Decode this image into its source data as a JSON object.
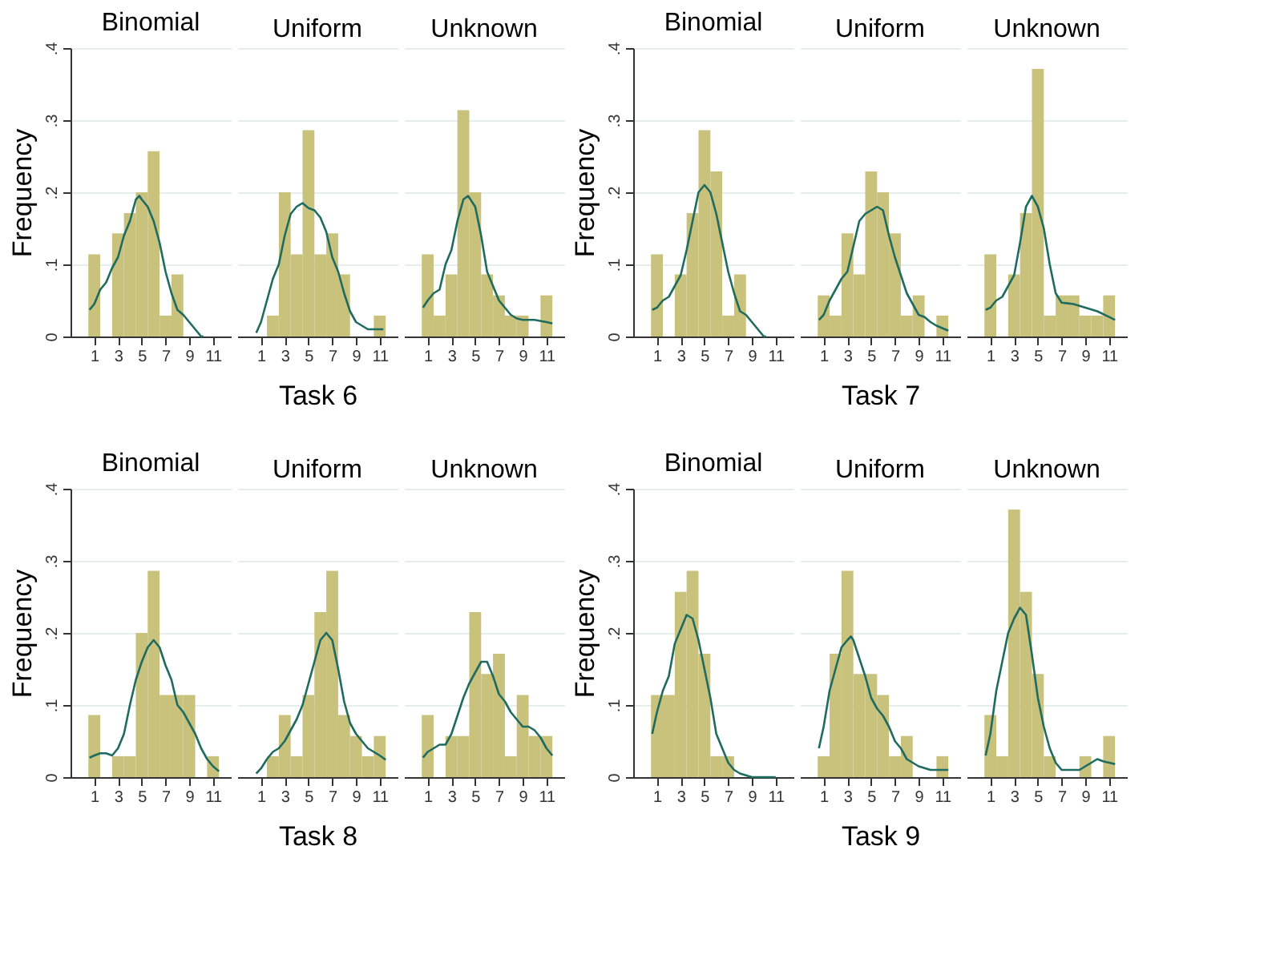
{
  "chart_data": [
    {
      "type": "histogram",
      "title": "Binomial",
      "ylabel": "Frequency",
      "color": "#c9c27d",
      "bins": [
        0.5,
        1.5,
        2.5,
        3.5,
        4.5,
        5.5,
        6.5,
        7.5,
        8.5,
        9.5,
        10.5,
        11.5
      ],
      "values": [
        0.114,
        0,
        0.143,
        0.171,
        0.2,
        0.257,
        0.029,
        0.086,
        0,
        0,
        0
      ],
      "series": [
        {
          "type": "line",
          "color": "#1f6b5f",
          "x": [
            0.6,
            1,
            1.5,
            2,
            2.5,
            3,
            3.5,
            4,
            4.5,
            4.8,
            5,
            5.5,
            6,
            6.5,
            7,
            7.5,
            8,
            8.5,
            9,
            9.5,
            10,
            10.2
          ],
          "values": [
            0.037,
            0.045,
            0.065,
            0.075,
            0.095,
            0.11,
            0.14,
            0.16,
            0.19,
            0.195,
            0.19,
            0.18,
            0.16,
            0.13,
            0.09,
            0.06,
            0.037,
            0.03,
            0.02,
            0.01,
            0,
            0
          ]
        }
      ],
      "xlim": [
        -1,
        12.5
      ],
      "xticks": [
        1,
        3,
        5,
        7,
        9,
        11
      ],
      "ylim": [
        0,
        0.4
      ],
      "yticks": [
        0,
        {
          "value": 0.1,
          "label": ".1"
        },
        {
          "value": 0.2,
          "label": ".2"
        },
        {
          "value": 0.3,
          "label": ".3"
        },
        {
          "value": 0.4,
          "label": ".4"
        }
      ],
      "grid": "y"
    },
    {
      "type": "histogram",
      "title": "Uniform",
      "xlabel": "Task 6",
      "color": "#c9c27d",
      "bins": [
        0.5,
        1.5,
        2.5,
        3.5,
        4.5,
        5.5,
        6.5,
        7.5,
        8.5,
        9.5,
        10.5,
        11.5
      ],
      "values": [
        0,
        0.029,
        0.2,
        0.114,
        0.286,
        0.114,
        0.143,
        0.086,
        0,
        0,
        0.029
      ],
      "series": [
        {
          "type": "line",
          "color": "#1f6b5f",
          "x": [
            0.6,
            1,
            1.5,
            2,
            2.5,
            3,
            3.5,
            4,
            4.5,
            5,
            5.5,
            6,
            6.5,
            7,
            7.5,
            8,
            8.5,
            9,
            9.5,
            10,
            10.5,
            11.3
          ],
          "values": [
            0.005,
            0.02,
            0.05,
            0.08,
            0.1,
            0.14,
            0.17,
            0.18,
            0.185,
            0.178,
            0.175,
            0.165,
            0.145,
            0.11,
            0.09,
            0.06,
            0.035,
            0.02,
            0.015,
            0.01,
            0.01,
            0.01
          ]
        }
      ],
      "xlim": [
        -1,
        12.5
      ],
      "xticks": [
        1,
        3,
        5,
        7,
        9,
        11
      ],
      "ylim": [
        0,
        0.4
      ],
      "yticks": [
        {
          "value": 0,
          "label": null
        },
        {
          "value": 0.1,
          "label": null
        },
        {
          "value": 0.2,
          "label": null
        },
        {
          "value": 0.3,
          "label": null
        },
        {
          "value": 0.4,
          "label": null
        }
      ],
      "grid": "y",
      "tick_labels": "x"
    },
    {
      "type": "histogram",
      "title": "Unknown",
      "color": "#c9c27d",
      "bins": [
        0.5,
        1.5,
        2.5,
        3.5,
        4.5,
        5.5,
        6.5,
        7.5,
        8.5,
        9.5,
        10.5,
        11.5
      ],
      "values": [
        0.114,
        0.029,
        0.086,
        0.314,
        0.2,
        0.086,
        0.057,
        0.029,
        0.029,
        0,
        0.057
      ],
      "series": [
        {
          "type": "line",
          "color": "#1f6b5f",
          "x": [
            0.6,
            1,
            1.5,
            2,
            2.5,
            3,
            3.5,
            4,
            4.4,
            5,
            5.5,
            6,
            6.5,
            7,
            7.5,
            8,
            8.5,
            9,
            10,
            11,
            11.5
          ],
          "values": [
            0.04,
            0.05,
            0.06,
            0.065,
            0.1,
            0.12,
            0.16,
            0.19,
            0.195,
            0.18,
            0.14,
            0.09,
            0.07,
            0.05,
            0.04,
            0.03,
            0.025,
            0.023,
            0.023,
            0.02,
            0.018
          ]
        }
      ],
      "xlim": [
        -1,
        12.5
      ],
      "xticks": [
        1,
        3,
        5,
        7,
        9,
        11
      ],
      "ylim": [
        0,
        0.4
      ],
      "yticks": [
        {
          "value": 0,
          "label": null
        },
        {
          "value": 0.1,
          "label": null
        },
        {
          "value": 0.2,
          "label": null
        },
        {
          "value": 0.3,
          "label": null
        },
        {
          "value": 0.4,
          "label": null
        }
      ],
      "grid": "y",
      "tick_labels": "x"
    },
    {
      "type": "histogram",
      "title": "Binomial",
      "ylabel": "Frequency",
      "color": "#c9c27d",
      "bins": [
        0.5,
        1.5,
        2.5,
        3.5,
        4.5,
        5.5,
        6.5,
        7.5,
        8.5,
        9.5,
        10.5,
        11.5
      ],
      "values": [
        0.114,
        0,
        0.086,
        0.171,
        0.286,
        0.229,
        0.029,
        0.086,
        0,
        0,
        0
      ],
      "series": [
        {
          "type": "line",
          "color": "#1f6b5f",
          "x": [
            0.6,
            1,
            1.5,
            2,
            2.5,
            3,
            3.5,
            4,
            4.5,
            5,
            5.5,
            6,
            6.5,
            7,
            7.5,
            8,
            8.5,
            9,
            9.5,
            10,
            10.2
          ],
          "values": [
            0.037,
            0.04,
            0.05,
            0.055,
            0.07,
            0.085,
            0.12,
            0.16,
            0.2,
            0.21,
            0.2,
            0.17,
            0.13,
            0.09,
            0.06,
            0.035,
            0.03,
            0.02,
            0.01,
            0,
            0
          ]
        }
      ],
      "xlim": [
        -1,
        12.5
      ],
      "xticks": [
        1,
        3,
        5,
        7,
        9,
        11
      ],
      "ylim": [
        0,
        0.4
      ],
      "yticks": [
        0,
        {
          "value": 0.1,
          "label": ".1"
        },
        {
          "value": 0.2,
          "label": ".2"
        },
        {
          "value": 0.3,
          "label": ".3"
        },
        {
          "value": 0.4,
          "label": ".4"
        }
      ],
      "grid": "y"
    },
    {
      "type": "histogram",
      "title": "Uniform",
      "xlabel": "Task 7",
      "color": "#c9c27d",
      "bins": [
        0.5,
        1.5,
        2.5,
        3.5,
        4.5,
        5.5,
        6.5,
        7.5,
        8.5,
        9.5,
        10.5,
        11.5
      ],
      "values": [
        0.057,
        0.029,
        0.143,
        0.086,
        0.229,
        0.2,
        0.143,
        0.029,
        0.057,
        0,
        0.029
      ],
      "series": [
        {
          "type": "line",
          "color": "#1f6b5f",
          "x": [
            0.6,
            1,
            1.5,
            2,
            2.5,
            3,
            3.5,
            4,
            4.5,
            5,
            5.5,
            6,
            6.5,
            7,
            7.5,
            8,
            8.5,
            9,
            9.5,
            10,
            10.5,
            11.5
          ],
          "values": [
            0.023,
            0.03,
            0.05,
            0.065,
            0.08,
            0.09,
            0.125,
            0.16,
            0.17,
            0.175,
            0.18,
            0.175,
            0.14,
            0.11,
            0.085,
            0.06,
            0.045,
            0.03,
            0.027,
            0.02,
            0.015,
            0.008
          ]
        }
      ],
      "xlim": [
        -1,
        12.5
      ],
      "xticks": [
        1,
        3,
        5,
        7,
        9,
        11
      ],
      "ylim": [
        0,
        0.4
      ],
      "yticks": [
        {
          "value": 0,
          "label": null
        },
        {
          "value": 0.1,
          "label": null
        },
        {
          "value": 0.2,
          "label": null
        },
        {
          "value": 0.3,
          "label": null
        },
        {
          "value": 0.4,
          "label": null
        }
      ],
      "grid": "y",
      "tick_labels": "x"
    },
    {
      "type": "histogram",
      "title": "Unknown",
      "color": "#c9c27d",
      "bins": [
        0.5,
        1.5,
        2.5,
        3.5,
        4.5,
        5.5,
        6.5,
        7.5,
        8.5,
        9.5,
        10.5,
        11.5
      ],
      "values": [
        0.114,
        0,
        0.086,
        0.171,
        0.371,
        0.029,
        0.057,
        0.057,
        0.029,
        0.029,
        0.057
      ],
      "series": [
        {
          "type": "line",
          "color": "#1f6b5f",
          "x": [
            0.6,
            1,
            1.5,
            2,
            2.5,
            3,
            3.5,
            4,
            4.5,
            5,
            5.5,
            6,
            6.5,
            7,
            7.5,
            8,
            9,
            10,
            11,
            11.5
          ],
          "values": [
            0.037,
            0.04,
            0.05,
            0.055,
            0.07,
            0.085,
            0.13,
            0.18,
            0.195,
            0.18,
            0.15,
            0.1,
            0.06,
            0.047,
            0.046,
            0.045,
            0.04,
            0.035,
            0.027,
            0.023
          ]
        }
      ],
      "xlim": [
        -1,
        12.5
      ],
      "xticks": [
        1,
        3,
        5,
        7,
        9,
        11
      ],
      "ylim": [
        0,
        0.4
      ],
      "yticks": [
        {
          "value": 0,
          "label": null
        },
        {
          "value": 0.1,
          "label": null
        },
        {
          "value": 0.2,
          "label": null
        },
        {
          "value": 0.3,
          "label": null
        },
        {
          "value": 0.4,
          "label": null
        }
      ],
      "grid": "y",
      "tick_labels": "x"
    },
    {
      "type": "histogram",
      "title": "Binomial",
      "ylabel": "Frequency",
      "color": "#c9c27d",
      "bins": [
        0.5,
        1.5,
        2.5,
        3.5,
        4.5,
        5.5,
        6.5,
        7.5,
        8.5,
        9.5,
        10.5,
        11.5
      ],
      "values": [
        0.086,
        0,
        0.029,
        0.029,
        0.2,
        0.286,
        0.114,
        0.114,
        0.114,
        0,
        0.029
      ],
      "series": [
        {
          "type": "line",
          "color": "#1f6b5f",
          "x": [
            0.6,
            1,
            1.5,
            2,
            2.5,
            3,
            3.5,
            4,
            4.5,
            5,
            5.5,
            6,
            6.5,
            7,
            7.5,
            8,
            8.5,
            9,
            9.5,
            10,
            10.5,
            11,
            11.5
          ],
          "values": [
            0.027,
            0.03,
            0.033,
            0.033,
            0.03,
            0.04,
            0.06,
            0.1,
            0.135,
            0.16,
            0.18,
            0.19,
            0.18,
            0.155,
            0.135,
            0.1,
            0.09,
            0.075,
            0.06,
            0.04,
            0.025,
            0.015,
            0.008
          ]
        }
      ],
      "xlim": [
        -1,
        12.5
      ],
      "xticks": [
        1,
        3,
        5,
        7,
        9,
        11
      ],
      "ylim": [
        0,
        0.4
      ],
      "yticks": [
        0,
        {
          "value": 0.1,
          "label": ".1"
        },
        {
          "value": 0.2,
          "label": ".2"
        },
        {
          "value": 0.3,
          "label": ".3"
        },
        {
          "value": 0.4,
          "label": ".4"
        }
      ],
      "grid": "y"
    },
    {
      "type": "histogram",
      "title": "Uniform",
      "xlabel": "Task 8",
      "color": "#c9c27d",
      "bins": [
        0.5,
        1.5,
        2.5,
        3.5,
        4.5,
        5.5,
        6.5,
        7.5,
        8.5,
        9.5,
        10.5,
        11.5
      ],
      "values": [
        0,
        0.029,
        0.086,
        0.029,
        0.114,
        0.229,
        0.286,
        0.086,
        0.057,
        0.029,
        0.057
      ],
      "series": [
        {
          "type": "line",
          "color": "#1f6b5f",
          "x": [
            0.6,
            1,
            1.5,
            2,
            2.5,
            3,
            3.5,
            4,
            4.5,
            5,
            5.5,
            6,
            6.5,
            7,
            7.5,
            8,
            8.5,
            9,
            9.5,
            10,
            10.5,
            11,
            11.5
          ],
          "values": [
            0.005,
            0.012,
            0.025,
            0.035,
            0.04,
            0.05,
            0.065,
            0.08,
            0.1,
            0.13,
            0.16,
            0.19,
            0.2,
            0.19,
            0.15,
            0.105,
            0.075,
            0.06,
            0.05,
            0.04,
            0.035,
            0.03,
            0.024
          ]
        }
      ],
      "xlim": [
        -1,
        12.5
      ],
      "xticks": [
        1,
        3,
        5,
        7,
        9,
        11
      ],
      "ylim": [
        0,
        0.4
      ],
      "yticks": [
        {
          "value": 0,
          "label": null
        },
        {
          "value": 0.1,
          "label": null
        },
        {
          "value": 0.2,
          "label": null
        },
        {
          "value": 0.3,
          "label": null
        },
        {
          "value": 0.4,
          "label": null
        }
      ],
      "grid": "y",
      "tick_labels": "x"
    },
    {
      "type": "histogram",
      "title": "Unknown",
      "color": "#c9c27d",
      "bins": [
        0.5,
        1.5,
        2.5,
        3.5,
        4.5,
        5.5,
        6.5,
        7.5,
        8.5,
        9.5,
        10.5,
        11.5
      ],
      "values": [
        0.086,
        0,
        0.057,
        0.057,
        0.229,
        0.143,
        0.171,
        0.029,
        0.114,
        0.057,
        0.057
      ],
      "series": [
        {
          "type": "line",
          "color": "#1f6b5f",
          "x": [
            0.6,
            1,
            1.5,
            2,
            2.5,
            3,
            3.5,
            4,
            4.5,
            5,
            5.5,
            6,
            6.5,
            7,
            7.5,
            8,
            8.5,
            9,
            9.5,
            10,
            10.5,
            11,
            11.5
          ],
          "values": [
            0.027,
            0.035,
            0.04,
            0.045,
            0.045,
            0.06,
            0.085,
            0.11,
            0.13,
            0.145,
            0.16,
            0.16,
            0.14,
            0.115,
            0.105,
            0.09,
            0.08,
            0.07,
            0.07,
            0.065,
            0.055,
            0.04,
            0.03
          ]
        }
      ],
      "xlim": [
        -1,
        12.5
      ],
      "xticks": [
        1,
        3,
        5,
        7,
        9,
        11
      ],
      "ylim": [
        0,
        0.4
      ],
      "yticks": [
        {
          "value": 0,
          "label": null
        },
        {
          "value": 0.1,
          "label": null
        },
        {
          "value": 0.2,
          "label": null
        },
        {
          "value": 0.3,
          "label": null
        },
        {
          "value": 0.4,
          "label": null
        }
      ],
      "grid": "y",
      "tick_labels": "x"
    },
    {
      "type": "histogram",
      "title": "Binomial",
      "ylabel": "Frequency",
      "color": "#c9c27d",
      "bins": [
        0.5,
        1.5,
        2.5,
        3.5,
        4.5,
        5.5,
        6.5,
        7.5,
        8.5,
        9.5,
        10.5,
        11.5
      ],
      "values": [
        0.114,
        0.114,
        0.257,
        0.286,
        0.171,
        0.029,
        0.029,
        0,
        0,
        0,
        0
      ],
      "series": [
        {
          "type": "line",
          "color": "#1f6b5f",
          "x": [
            0.6,
            1,
            1.5,
            2,
            2.5,
            3,
            3.5,
            4,
            4.5,
            5,
            5.5,
            6,
            6.5,
            7,
            7.5,
            8,
            9,
            11
          ],
          "values": [
            0.06,
            0.09,
            0.12,
            0.14,
            0.185,
            0.205,
            0.225,
            0.22,
            0.19,
            0.15,
            0.11,
            0.06,
            0.04,
            0.02,
            0.01,
            0.005,
            0,
            0
          ]
        }
      ],
      "xlim": [
        -1,
        12.5
      ],
      "xticks": [
        1,
        3,
        5,
        7,
        9,
        11
      ],
      "ylim": [
        0,
        0.4
      ],
      "yticks": [
        0,
        {
          "value": 0.1,
          "label": ".1"
        },
        {
          "value": 0.2,
          "label": ".2"
        },
        {
          "value": 0.3,
          "label": ".3"
        },
        {
          "value": 0.4,
          "label": ".4"
        }
      ],
      "grid": "y"
    },
    {
      "type": "histogram",
      "title": "Uniform",
      "xlabel": "Task 9",
      "color": "#c9c27d",
      "bins": [
        0.5,
        1.5,
        2.5,
        3.5,
        4.5,
        5.5,
        6.5,
        7.5,
        8.5,
        9.5,
        10.5,
        11.5
      ],
      "values": [
        0.029,
        0.171,
        0.286,
        0.143,
        0.143,
        0.114,
        0.029,
        0.057,
        0,
        0,
        0.029
      ],
      "series": [
        {
          "type": "line",
          "color": "#1f6b5f",
          "x": [
            0.6,
            1,
            1.5,
            2,
            2.5,
            3,
            3.3,
            3.5,
            4,
            4.5,
            5,
            5.5,
            6,
            6.5,
            7,
            7.5,
            8,
            8.5,
            9,
            10,
            11.5
          ],
          "values": [
            0.04,
            0.07,
            0.12,
            0.15,
            0.18,
            0.19,
            0.195,
            0.19,
            0.165,
            0.14,
            0.11,
            0.095,
            0.085,
            0.07,
            0.05,
            0.04,
            0.025,
            0.02,
            0.015,
            0.01,
            0.01
          ]
        }
      ],
      "xlim": [
        -1,
        12.5
      ],
      "xticks": [
        1,
        3,
        5,
        7,
        9,
        11
      ],
      "ylim": [
        0,
        0.4
      ],
      "yticks": [
        {
          "value": 0,
          "label": null
        },
        {
          "value": 0.1,
          "label": null
        },
        {
          "value": 0.2,
          "label": null
        },
        {
          "value": 0.3,
          "label": null
        },
        {
          "value": 0.4,
          "label": null
        }
      ],
      "grid": "y",
      "tick_labels": "x"
    },
    {
      "type": "histogram",
      "title": "Unknown",
      "color": "#c9c27d",
      "bins": [
        0.5,
        1.5,
        2.5,
        3.5,
        4.5,
        5.5,
        6.5,
        7.5,
        8.5,
        9.5,
        10.5,
        11.5
      ],
      "values": [
        0.086,
        0.029,
        0.371,
        0.257,
        0.143,
        0.029,
        0,
        0,
        0.029,
        0,
        0.057
      ],
      "series": [
        {
          "type": "line",
          "color": "#1f6b5f",
          "x": [
            0.6,
            1,
            1.5,
            2,
            2.5,
            3,
            3.5,
            4,
            4.5,
            5,
            5.5,
            6,
            6.5,
            7,
            8,
            8.5,
            9,
            9.5,
            10,
            10.5,
            11,
            11.5
          ],
          "values": [
            0.03,
            0.06,
            0.12,
            0.16,
            0.2,
            0.22,
            0.235,
            0.225,
            0.17,
            0.11,
            0.07,
            0.04,
            0.02,
            0.01,
            0.01,
            0.01,
            0.015,
            0.02,
            0.025,
            0.022,
            0.02,
            0.018
          ]
        }
      ],
      "xlim": [
        -1,
        12.5
      ],
      "xticks": [
        1,
        3,
        5,
        7,
        9,
        11
      ],
      "ylim": [
        0,
        0.4
      ],
      "yticks": [
        {
          "value": 0,
          "label": null
        },
        {
          "value": 0.1,
          "label": null
        },
        {
          "value": 0.2,
          "label": null
        },
        {
          "value": 0.3,
          "label": null
        },
        {
          "value": 0.4,
          "label": null
        }
      ],
      "grid": "y",
      "tick_labels": "x"
    }
  ]
}
